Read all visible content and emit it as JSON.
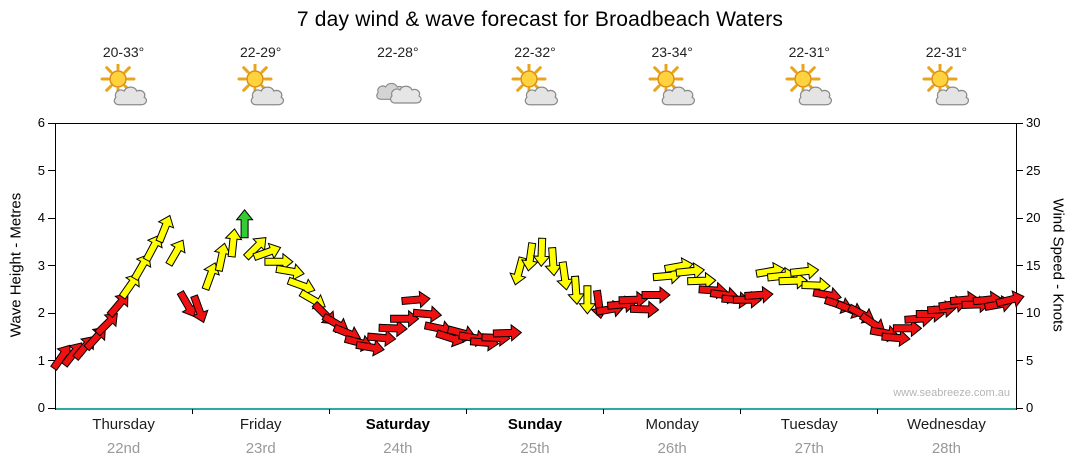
{
  "title": "7 day wind & wave forecast for Broadbeach Waters",
  "watermark": "www.seabreeze.com.au",
  "axes": {
    "left_label": "Wave Height - Metres",
    "right_label": "Wind Speed - Knots",
    "left_ticks": [
      0,
      1,
      2,
      3,
      4,
      5,
      6
    ],
    "right_ticks": [
      0,
      5,
      10,
      15,
      20,
      25,
      30
    ]
  },
  "days": [
    {
      "name": "Thursday",
      "date": "22nd",
      "temp": "20-33°",
      "icon": "sun-cloud-icon",
      "weekend": false
    },
    {
      "name": "Friday",
      "date": "23rd",
      "temp": "22-29°",
      "icon": "sun-cloud-icon",
      "weekend": false
    },
    {
      "name": "Saturday",
      "date": "24th",
      "temp": "22-28°",
      "icon": "clouds-icon",
      "weekend": true
    },
    {
      "name": "Sunday",
      "date": "25th",
      "temp": "22-32°",
      "icon": "sun-cloud-icon",
      "weekend": true
    },
    {
      "name": "Monday",
      "date": "26th",
      "temp": "23-34°",
      "icon": "sun-cloud-icon",
      "weekend": false
    },
    {
      "name": "Tuesday",
      "date": "27th",
      "temp": "22-31°",
      "icon": "sun-cloud-icon",
      "weekend": false
    },
    {
      "name": "Wednesday",
      "date": "28th",
      "temp": "22-31°",
      "icon": "sun-cloud-icon",
      "weekend": false
    }
  ],
  "colors": {
    "red": "#ee1111",
    "yellow": "#ffff00",
    "green": "#33cc33",
    "baseline": "#2fa8a0"
  },
  "chart_data": {
    "type": "scatter",
    "title": "7 day wind & wave forecast for Broadbeach Waters",
    "xlabel": "",
    "ylabel_left": "Wave Height - Metres",
    "ylabel_right": "Wind Speed - Knots",
    "left_axis": {
      "min": 0,
      "max": 6
    },
    "right_axis": {
      "min": 0,
      "max": 30
    },
    "categories": [
      "Thursday 22nd",
      "Friday 23rd",
      "Saturday 24th",
      "Sunday 25th",
      "Monday 26th",
      "Tuesday 27th",
      "Wednesday 28th"
    ],
    "point_format": [
      "wind_speed_knots",
      "arrow_direction_deg",
      "color"
    ],
    "series": [
      {
        "day": "Thursday",
        "values": [
          [
            5.5,
            35,
            "red"
          ],
          [
            5.8,
            38,
            "red"
          ],
          [
            6.5,
            40,
            "red"
          ],
          [
            7.5,
            42,
            "red"
          ],
          [
            9,
            45,
            "red"
          ],
          [
            11,
            40,
            "red"
          ],
          [
            13,
            35,
            "yellow"
          ],
          [
            15,
            30,
            "yellow"
          ],
          [
            17,
            28,
            "yellow"
          ],
          [
            19,
            22,
            "yellow"
          ],
          [
            16.5,
            30,
            "yellow"
          ],
          [
            11,
            150,
            "red"
          ]
        ]
      },
      {
        "day": "Friday",
        "values": [
          [
            10.5,
            160,
            "red"
          ],
          [
            14,
            20,
            "yellow"
          ],
          [
            16,
            12,
            "yellow"
          ],
          [
            17.5,
            6,
            "yellow"
          ],
          [
            19.5,
            0,
            "green"
          ],
          [
            17,
            45,
            "yellow"
          ],
          [
            16.5,
            70,
            "yellow"
          ],
          [
            15.5,
            90,
            "yellow"
          ],
          [
            14.5,
            100,
            "yellow"
          ],
          [
            13,
            110,
            "yellow"
          ],
          [
            11.5,
            120,
            "yellow"
          ],
          [
            10,
            135,
            "red"
          ]
        ]
      },
      {
        "day": "Saturday",
        "values": [
          [
            9,
            120,
            "red"
          ],
          [
            8,
            112,
            "red"
          ],
          [
            7,
            105,
            "red"
          ],
          [
            6.5,
            100,
            "red"
          ],
          [
            7.5,
            95,
            "red"
          ],
          [
            8.5,
            92,
            "red"
          ],
          [
            9.5,
            90,
            "red"
          ],
          [
            11.5,
            85,
            "red"
          ],
          [
            10,
            95,
            "red"
          ],
          [
            8.5,
            102,
            "red"
          ],
          [
            7.5,
            108,
            "red"
          ],
          [
            8,
            105,
            "red"
          ]
        ]
      },
      {
        "day": "Sunday",
        "values": [
          [
            7.5,
            100,
            "red"
          ],
          [
            7,
            95,
            "red"
          ],
          [
            7.5,
            92,
            "red"
          ],
          [
            8,
            88,
            "red"
          ],
          [
            14.5,
            195,
            "yellow"
          ],
          [
            16,
            188,
            "yellow"
          ],
          [
            16.5,
            182,
            "yellow"
          ],
          [
            15.5,
            176,
            "yellow"
          ],
          [
            14,
            172,
            "yellow"
          ],
          [
            12.5,
            176,
            "yellow"
          ],
          [
            11.5,
            180,
            "yellow"
          ],
          [
            11,
            172,
            "red"
          ]
        ]
      },
      {
        "day": "Monday",
        "values": [
          [
            10.5,
            80,
            "red"
          ],
          [
            11,
            85,
            "red"
          ],
          [
            11.5,
            88,
            "red"
          ],
          [
            10.5,
            92,
            "red"
          ],
          [
            12,
            90,
            "red"
          ],
          [
            14,
            85,
            "yellow"
          ],
          [
            15,
            80,
            "yellow"
          ],
          [
            14.5,
            84,
            "yellow"
          ],
          [
            13.5,
            88,
            "yellow"
          ],
          [
            12.5,
            94,
            "red"
          ],
          [
            12,
            98,
            "red"
          ],
          [
            11.5,
            95,
            "red"
          ]
        ]
      },
      {
        "day": "Tuesday",
        "values": [
          [
            11.5,
            90,
            "red"
          ],
          [
            12,
            86,
            "red"
          ],
          [
            14.5,
            80,
            "yellow"
          ],
          [
            14,
            84,
            "yellow"
          ],
          [
            13.5,
            88,
            "yellow"
          ],
          [
            14.5,
            84,
            "yellow"
          ],
          [
            13,
            92,
            "yellow"
          ],
          [
            12,
            100,
            "red"
          ],
          [
            11,
            108,
            "red"
          ],
          [
            10.5,
            112,
            "red"
          ],
          [
            10,
            118,
            "red"
          ],
          [
            9,
            124,
            "red"
          ]
        ]
      },
      {
        "day": "Wednesday",
        "values": [
          [
            8,
            100,
            "red"
          ],
          [
            7.5,
            95,
            "red"
          ],
          [
            8.5,
            90,
            "red"
          ],
          [
            9.5,
            86,
            "red"
          ],
          [
            10,
            90,
            "red"
          ],
          [
            10.5,
            86,
            "red"
          ],
          [
            11,
            82,
            "red"
          ],
          [
            11.5,
            85,
            "red"
          ],
          [
            11,
            88,
            "red"
          ],
          [
            11.5,
            84,
            "red"
          ],
          [
            11,
            80,
            "red"
          ],
          [
            11.5,
            76,
            "red"
          ]
        ]
      }
    ]
  }
}
